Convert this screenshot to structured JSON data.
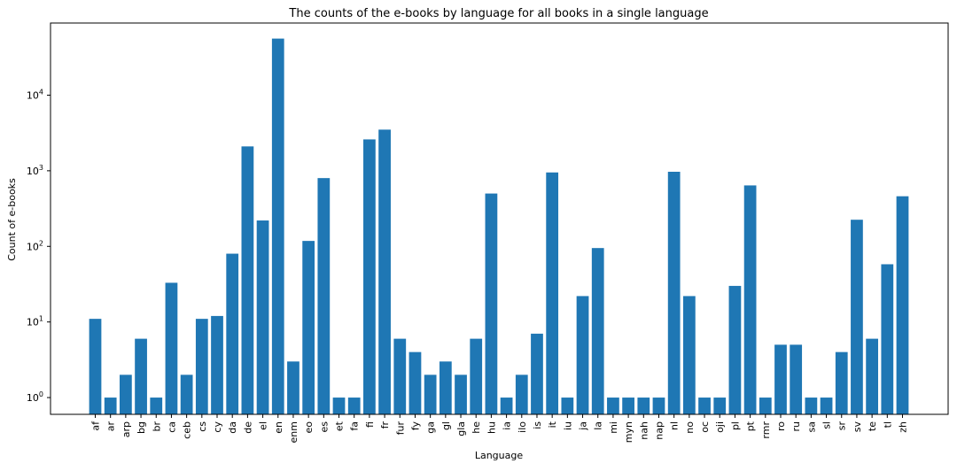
{
  "chart_data": {
    "type": "bar",
    "title": "The counts of the e-books by language for all books in a single language",
    "xlabel": "Language",
    "ylabel": "Count of e-books",
    "y_scale": "log",
    "ylim": [
      0.6,
      90000
    ],
    "grid": false,
    "color": "#1f77b4",
    "categories": [
      "af",
      "ar",
      "arp",
      "bg",
      "br",
      "ca",
      "ceb",
      "cs",
      "cy",
      "da",
      "de",
      "el",
      "en",
      "enm",
      "eo",
      "es",
      "et",
      "fa",
      "fi",
      "fr",
      "fur",
      "fy",
      "ga",
      "gl",
      "gla",
      "he",
      "hu",
      "ia",
      "ilo",
      "is",
      "it",
      "iu",
      "ja",
      "la",
      "mi",
      "myn",
      "nah",
      "nap",
      "nl",
      "no",
      "oc",
      "oji",
      "pl",
      "pt",
      "rmr",
      "ro",
      "ru",
      "sa",
      "sl",
      "sr",
      "sv",
      "te",
      "tl",
      "zh"
    ],
    "values": [
      11,
      1,
      2,
      6,
      1,
      33,
      2,
      11,
      12,
      80,
      2100,
      220,
      56000,
      3,
      118,
      800,
      1,
      1,
      2600,
      3500,
      6,
      4,
      2,
      3,
      2,
      6,
      500,
      1,
      2,
      7,
      950,
      1,
      22,
      95,
      1,
      1,
      1,
      1,
      970,
      22,
      1,
      1,
      30,
      640,
      1,
      5,
      5,
      1,
      1,
      4,
      225,
      6,
      58,
      460
    ],
    "y_ticks": [
      {
        "value": 1,
        "base": "10",
        "exp": "0"
      },
      {
        "value": 10,
        "base": "10",
        "exp": "1"
      },
      {
        "value": 100,
        "base": "10",
        "exp": "2"
      },
      {
        "value": 1000,
        "base": "10",
        "exp": "3"
      },
      {
        "value": 10000,
        "base": "10",
        "exp": "4"
      }
    ]
  }
}
